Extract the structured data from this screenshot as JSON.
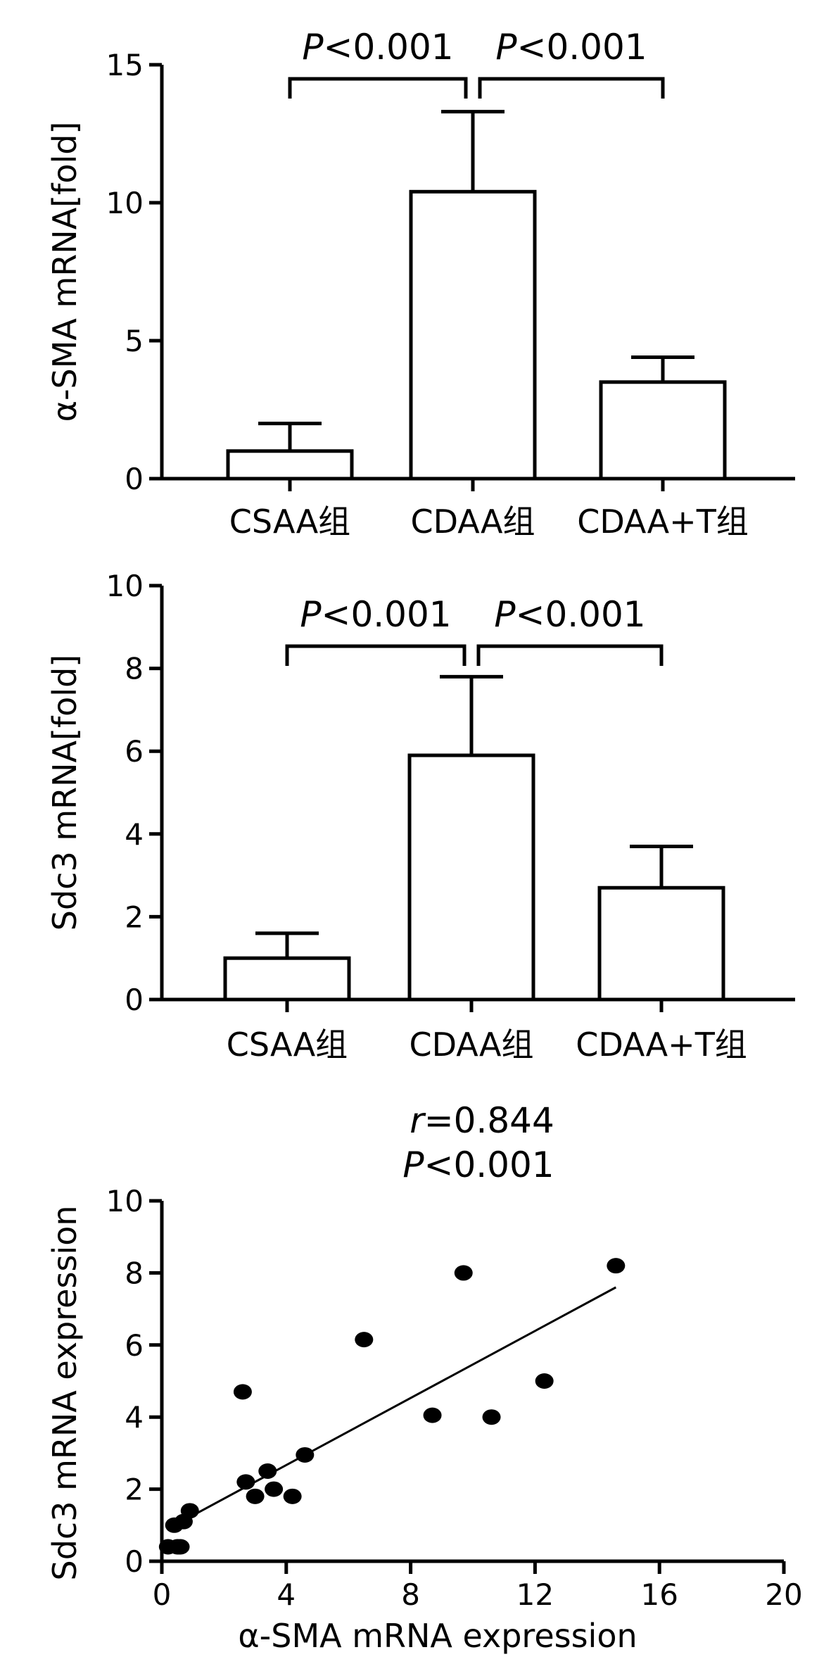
{
  "chart_data": [
    {
      "type": "bar",
      "categories": [
        "CSAA组",
        "CDAA组",
        "CDAA+T组"
      ],
      "values": [
        1.0,
        10.4,
        3.5
      ],
      "errors": [
        1.0,
        2.9,
        0.9
      ],
      "ylabel": "α-SMA mRNA[fold]",
      "ylim": [
        0,
        15
      ],
      "yticks": [
        "0",
        "5",
        "10",
        "15"
      ],
      "annotations": [
        {
          "text": "P<0.001",
          "italic_prefix": "P",
          "rest": "<0.001",
          "from": 0,
          "to": 1
        },
        {
          "text": "P<0.001",
          "italic_prefix": "P",
          "rest": "<0.001",
          "from": 1,
          "to": 2
        }
      ]
    },
    {
      "type": "bar",
      "categories": [
        "CSAA组",
        "CDAA组",
        "CDAA+T组"
      ],
      "values": [
        1.0,
        5.9,
        2.7
      ],
      "errors": [
        0.6,
        1.9,
        1.0
      ],
      "ylabel": "Sdc3 mRNA[fold]",
      "ylim": [
        0,
        10
      ],
      "yticks": [
        "0",
        "2",
        "4",
        "6",
        "8",
        "10"
      ],
      "annotations": [
        {
          "text": "P<0.001",
          "italic_prefix": "P",
          "rest": "<0.001",
          "from": 0,
          "to": 1
        },
        {
          "text": "P<0.001",
          "italic_prefix": "P",
          "rest": "<0.001",
          "from": 1,
          "to": 2
        }
      ]
    },
    {
      "type": "scatter",
      "xlabel": "α-SMA mRNA expression",
      "ylabel": "Sdc3 mRNA expression",
      "xlim": [
        0,
        20
      ],
      "ylim": [
        0,
        10
      ],
      "xticks": [
        "0",
        "4",
        "8",
        "12",
        "16",
        "20"
      ],
      "yticks": [
        "0",
        "2",
        "4",
        "6",
        "8",
        "10"
      ],
      "points": [
        [
          0.2,
          0.4
        ],
        [
          0.5,
          0.4
        ],
        [
          0.6,
          0.4
        ],
        [
          0.4,
          1.0
        ],
        [
          0.7,
          1.1
        ],
        [
          0.9,
          1.4
        ],
        [
          2.6,
          4.7
        ],
        [
          2.7,
          2.2
        ],
        [
          3.0,
          1.8
        ],
        [
          3.4,
          2.5
        ],
        [
          3.6,
          2.0
        ],
        [
          4.2,
          1.8
        ],
        [
          4.6,
          2.95
        ],
        [
          6.5,
          6.15
        ],
        [
          8.7,
          4.05
        ],
        [
          9.7,
          8.0
        ],
        [
          10.6,
          4.0
        ],
        [
          12.3,
          5.0
        ],
        [
          14.6,
          8.2
        ]
      ],
      "fit_line": {
        "x": [
          0.2,
          14.6
        ],
        "y": [
          0.9,
          7.6
        ]
      },
      "stats": {
        "r_label": "r",
        "r_rest": "=0.844",
        "p_label": "P",
        "p_rest": "<0.001"
      }
    }
  ]
}
